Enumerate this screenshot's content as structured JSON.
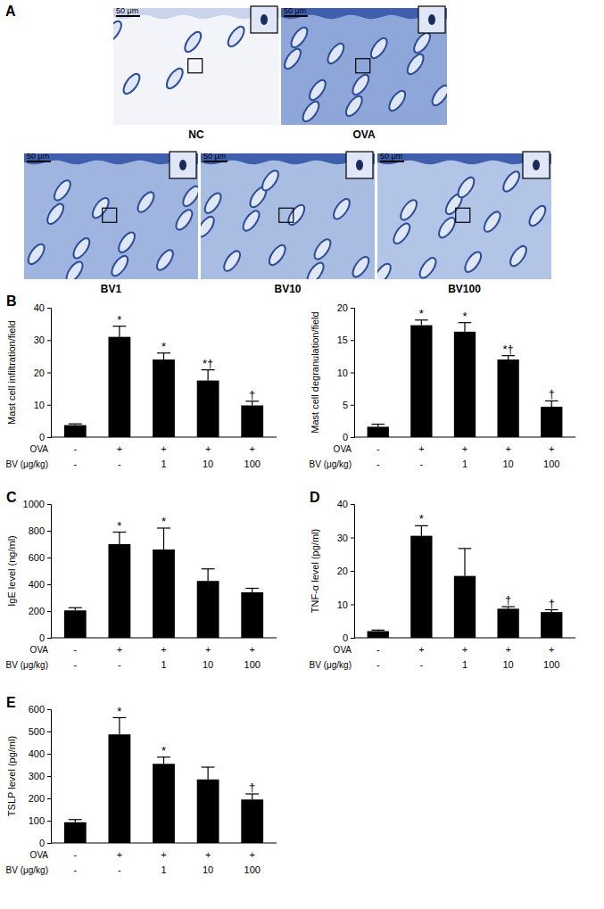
{
  "panel_a": {
    "panel_label": "A",
    "images": [
      {
        "label": "NC",
        "scale_bar": "50 μm"
      },
      {
        "label": "OVA",
        "scale_bar": "50 μm"
      },
      {
        "label": "BV1",
        "scale_bar": "50 μm"
      },
      {
        "label": "BV10",
        "scale_bar": "50 μm"
      },
      {
        "label": "BV100",
        "scale_bar": "50 μm"
      }
    ]
  },
  "chart_data": [
    {
      "type": "bar",
      "panel_label": "B",
      "y_label": "Mast cell infiltration/field",
      "color": "#000000",
      "x_rows": [
        {
          "label": "OVA",
          "categories": [
            "-",
            "+",
            "+",
            "+",
            "+"
          ]
        },
        {
          "label": "BV (μg/kg)",
          "categories": [
            "-",
            "-",
            "1",
            "10",
            "100"
          ]
        }
      ],
      "values": [
        3.7,
        31,
        24,
        17.5,
        9.8
      ],
      "errors": [
        0.4,
        3.3,
        2,
        3.3,
        1.3
      ],
      "significance": [
        null,
        "*",
        "*",
        "*†",
        "†"
      ],
      "ylim": [
        0,
        40
      ],
      "yticks": [
        0,
        10,
        20,
        30,
        40
      ]
    },
    {
      "type": "bar",
      "y_label": "Mast cell degranulation/field",
      "color": "#000000",
      "x_rows": [
        {
          "label": "OVA",
          "categories": [
            "-",
            "+",
            "+",
            "+",
            "+"
          ]
        },
        {
          "label": "BV (μg/kg)",
          "categories": [
            "-",
            "-",
            "1",
            "10",
            "100"
          ]
        }
      ],
      "values": [
        1.6,
        17.3,
        16.3,
        12,
        4.7
      ],
      "errors": [
        0.4,
        0.8,
        1.4,
        0.6,
        0.9
      ],
      "significance": [
        null,
        "*",
        "*",
        "*†",
        "†"
      ],
      "ylim": [
        0,
        20
      ],
      "yticks": [
        0,
        5,
        10,
        15,
        20
      ]
    },
    {
      "type": "bar",
      "panel_label": "C",
      "y_label": "IgE level (ng/ml)",
      "color": "#000000",
      "x_rows": [
        {
          "label": "OVA",
          "categories": [
            "-",
            "+",
            "+",
            "+",
            "+"
          ]
        },
        {
          "label": "BV (μg/kg)",
          "categories": [
            "-",
            "-",
            "1",
            "10",
            "100"
          ]
        }
      ],
      "values": [
        205,
        700,
        660,
        425,
        340
      ],
      "errors": [
        20,
        90,
        160,
        90,
        30
      ],
      "significance": [
        null,
        "*",
        "*",
        null,
        null
      ],
      "ylim": [
        0,
        1000
      ],
      "yticks": [
        0,
        200,
        400,
        600,
        800,
        1000
      ]
    },
    {
      "type": "bar",
      "panel_label": "D",
      "y_label": "TNF-α level (pg/ml)",
      "color": "#000000",
      "x_rows": [
        {
          "label": "OVA",
          "categories": [
            "-",
            "+",
            "+",
            "+",
            "+"
          ]
        },
        {
          "label": "BV (μg/kg)",
          "categories": [
            "-",
            "-",
            "1",
            "10",
            "100"
          ]
        }
      ],
      "values": [
        2,
        30.5,
        18.5,
        8.7,
        7.7
      ],
      "errors": [
        0.3,
        3,
        8.2,
        0.6,
        0.7
      ],
      "significance": [
        null,
        "*",
        null,
        "†",
        "†"
      ],
      "ylim": [
        0,
        40
      ],
      "yticks": [
        0,
        10,
        20,
        30,
        40
      ]
    },
    {
      "type": "bar",
      "panel_label": "E",
      "y_label": "TSLP level (pg/ml)",
      "color": "#000000",
      "x_rows": [
        {
          "label": "OVA",
          "categories": [
            "-",
            "+",
            "+",
            "+",
            "+"
          ]
        },
        {
          "label": "BV (μg/kg)",
          "categories": [
            "-",
            "-",
            "1",
            "10",
            "100"
          ]
        }
      ],
      "values": [
        93,
        487,
        355,
        285,
        195
      ],
      "errors": [
        12,
        75,
        30,
        55,
        25
      ],
      "significance": [
        null,
        "*",
        "*",
        null,
        "†"
      ],
      "ylim": [
        0,
        600
      ],
      "yticks": [
        0,
        100,
        200,
        300,
        400,
        500,
        600
      ]
    }
  ]
}
